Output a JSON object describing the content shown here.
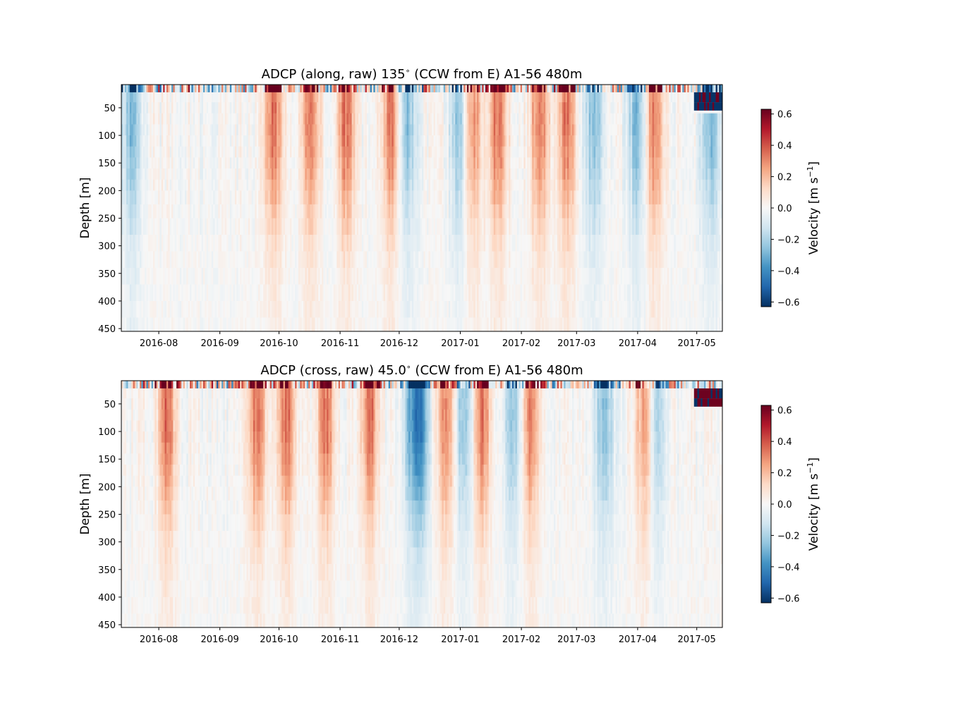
{
  "chart_data": [
    {
      "type": "heatmap",
      "title": "ADCP (along, raw) 135$^\\circ$ (CCW from E) A1-56 480m",
      "title_parts": [
        "ADCP (along, raw) 135",
        "∘",
        " (CCW from E) A1-56 480m"
      ],
      "ylabel": "Depth [m]",
      "xlabel": "",
      "x_ticks": [
        "2016-08",
        "2016-09",
        "2016-10",
        "2016-11",
        "2016-12",
        "2017-01",
        "2017-02",
        "2017-03",
        "2017-04",
        "2017-05"
      ],
      "xlim": [
        "2016-07-13",
        "2017-05-14"
      ],
      "y_ticks": [
        50,
        100,
        150,
        200,
        250,
        300,
        350,
        400,
        450
      ],
      "ylim": [
        455,
        8
      ],
      "y_inverted": true,
      "colorbar": {
        "label": "Velocity [m s",
        "label_sup": "−1",
        "label_end": "]",
        "ticks": [
          "0.6",
          "0.4",
          "0.2",
          "0.0",
          "−0.2",
          "−0.4",
          "−0.6"
        ],
        "range": [
          -0.63,
          0.63
        ],
        "colormap": "RdBu_r"
      },
      "features": {
        "surface_bins_depth": [
          8,
          22
        ],
        "gap_after": "2017-04-30",
        "positive_bursts": [
          "2016-09-28",
          "2016-10-17",
          "2016-11-04",
          "2016-11-27",
          "2017-01-07",
          "2017-01-20",
          "2017-02-10",
          "2017-02-24",
          "2017-04-09"
        ],
        "negative_bursts": [
          "2016-07-18",
          "2016-12-05",
          "2017-01-01",
          "2017-03-10",
          "2017-04-01",
          "2017-05-08"
        ]
      }
    },
    {
      "type": "heatmap",
      "title": "ADCP (cross, raw) 45.0$^\\circ$ (CCW from E) A1-56 480m",
      "title_parts": [
        "ADCP (cross, raw) 45.0",
        "∘",
        " (CCW from E) A1-56 480m"
      ],
      "ylabel": "Depth [m]",
      "xlabel": "",
      "x_ticks": [
        "2016-08",
        "2016-09",
        "2016-10",
        "2016-11",
        "2016-12",
        "2017-01",
        "2017-02",
        "2017-03",
        "2017-04",
        "2017-05"
      ],
      "xlim": [
        "2016-07-13",
        "2017-05-14"
      ],
      "y_ticks": [
        50,
        100,
        150,
        200,
        250,
        300,
        350,
        400,
        450
      ],
      "ylim": [
        455,
        8
      ],
      "y_inverted": true,
      "colorbar": {
        "label": "Velocity [m s",
        "label_sup": "−1",
        "label_end": "]",
        "ticks": [
          "0.6",
          "0.4",
          "0.2",
          "0.0",
          "−0.2",
          "−0.4",
          "−0.6"
        ],
        "range": [
          -0.63,
          0.63
        ],
        "colormap": "RdBu_r"
      },
      "features": {
        "surface_bins_depth": [
          8,
          22
        ],
        "gap_after": "2017-04-30",
        "positive_bursts": [
          "2016-08-05",
          "2016-09-20",
          "2016-10-05",
          "2016-10-25",
          "2016-11-16",
          "2016-12-25",
          "2017-01-12",
          "2017-02-05",
          "2017-04-05"
        ],
        "negative_bursts": [
          "2016-12-08",
          "2016-12-12",
          "2017-01-03",
          "2017-01-28",
          "2017-03-15",
          "2017-04-10"
        ]
      }
    }
  ]
}
